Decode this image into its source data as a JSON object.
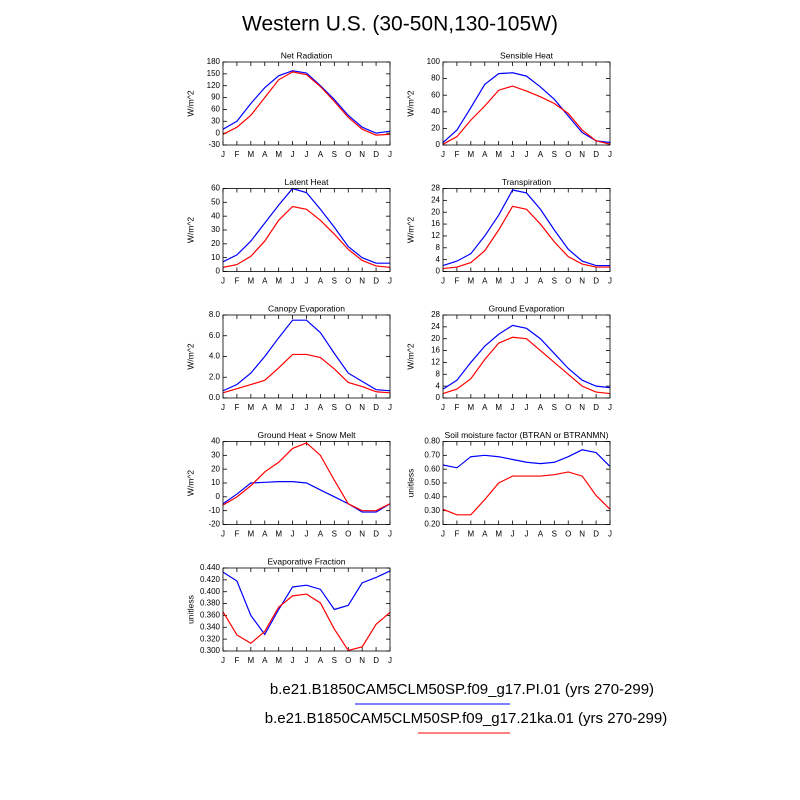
{
  "title": "Western U.S. (30-50N,130-105W)",
  "legend": [
    {
      "name": "b.e21.B1850CAM5CLM50SP.f09_g17.PI.01 (yrs 270-299)",
      "color": "#0000ff"
    },
    {
      "name": "b.e21.B1850CAM5CLM50SP.f09_g17.21ka.01 (yrs 270-299)",
      "color": "#ff0000"
    }
  ],
  "chart_data": [
    {
      "type": "line",
      "title": "Net Radiation",
      "ylabel": "W/m^2",
      "categories": [
        "J",
        "F",
        "M",
        "A",
        "M",
        "J",
        "J",
        "A",
        "S",
        "O",
        "N",
        "D",
        "J"
      ],
      "series": [
        {
          "color": "#0000ff",
          "values": [
            10,
            30,
            75,
            115,
            145,
            158,
            152,
            120,
            85,
            45,
            15,
            0,
            5
          ]
        },
        {
          "color": "#ff0000",
          "values": [
            -3,
            15,
            45,
            90,
            135,
            155,
            148,
            118,
            80,
            40,
            10,
            -5,
            -3
          ]
        }
      ],
      "ylim": [
        -30,
        180
      ],
      "yticks": [
        -30,
        0,
        30,
        60,
        90,
        120,
        150,
        180
      ]
    },
    {
      "type": "line",
      "title": "Sensible Heat",
      "ylabel": "W/m^2",
      "categories": [
        "J",
        "F",
        "M",
        "A",
        "M",
        "J",
        "J",
        "A",
        "S",
        "O",
        "N",
        "D",
        "J"
      ],
      "series": [
        {
          "color": "#0000ff",
          "values": [
            3,
            18,
            45,
            73,
            86,
            87,
            83,
            70,
            55,
            35,
            15,
            5,
            3
          ]
        },
        {
          "color": "#ff0000",
          "values": [
            1,
            10,
            30,
            47,
            66,
            71,
            65,
            58,
            50,
            38,
            18,
            5,
            1
          ]
        }
      ],
      "ylim": [
        0,
        100
      ],
      "yticks": [
        0,
        20,
        40,
        60,
        80,
        100
      ]
    },
    {
      "type": "line",
      "title": "Latent Heat",
      "ylabel": "W/m^2",
      "categories": [
        "J",
        "F",
        "M",
        "A",
        "M",
        "J",
        "J",
        "A",
        "S",
        "O",
        "N",
        "D",
        "J"
      ],
      "series": [
        {
          "color": "#0000ff",
          "values": [
            7,
            12,
            22,
            35,
            48,
            60,
            57,
            45,
            32,
            18,
            10,
            6,
            6
          ]
        },
        {
          "color": "#ff0000",
          "values": [
            3,
            5,
            11,
            22,
            37,
            47,
            45,
            37,
            27,
            16,
            8,
            4,
            3
          ]
        }
      ],
      "ylim": [
        0,
        60
      ],
      "yticks": [
        0,
        10,
        20,
        30,
        40,
        50,
        60
      ]
    },
    {
      "type": "line",
      "title": "Transpiration",
      "ylabel": "W/m^2",
      "categories": [
        "J",
        "F",
        "M",
        "A",
        "M",
        "J",
        "J",
        "A",
        "S",
        "O",
        "N",
        "D",
        "J"
      ],
      "series": [
        {
          "color": "#0000ff",
          "values": [
            2,
            3.5,
            6,
            12,
            19,
            27.5,
            26.5,
            21,
            14,
            7.5,
            3.5,
            2,
            2
          ]
        },
        {
          "color": "#ff0000",
          "values": [
            1,
            1.5,
            3,
            7,
            14,
            22,
            21,
            16,
            10,
            5,
            2.5,
            1.5,
            1.5
          ]
        }
      ],
      "ylim": [
        0,
        28
      ],
      "yticks": [
        0,
        4,
        8,
        12,
        16,
        20,
        24,
        28
      ]
    },
    {
      "type": "line",
      "title": "Canopy Evaporation",
      "ylabel": "W/m^2",
      "categories": [
        "J",
        "F",
        "M",
        "A",
        "M",
        "J",
        "J",
        "A",
        "S",
        "O",
        "N",
        "D",
        "J"
      ],
      "series": [
        {
          "color": "#0000ff",
          "values": [
            0.7,
            1.3,
            2.4,
            4.0,
            5.8,
            7.5,
            7.5,
            6.3,
            4.3,
            2.4,
            1.6,
            0.8,
            0.7
          ]
        },
        {
          "color": "#ff0000",
          "values": [
            0.5,
            0.9,
            1.3,
            1.7,
            2.9,
            4.2,
            4.2,
            3.9,
            2.8,
            1.5,
            1.1,
            0.6,
            0.5
          ]
        }
      ],
      "ylim": [
        0,
        8
      ],
      "yticks": [
        {
          "value": 0,
          "label": "0.0"
        },
        {
          "value": 2,
          "label": "2.0"
        },
        {
          "value": 4,
          "label": "4.0"
        },
        {
          "value": 6,
          "label": "6.0"
        },
        {
          "value": 8,
          "label": "8.0"
        }
      ]
    },
    {
      "type": "line",
      "title": "Ground Evaporation",
      "ylabel": "W/m^2",
      "categories": [
        "J",
        "F",
        "M",
        "A",
        "M",
        "J",
        "J",
        "A",
        "S",
        "O",
        "N",
        "D",
        "J"
      ],
      "series": [
        {
          "color": "#0000ff",
          "values": [
            3,
            6,
            12,
            17.5,
            21.5,
            24.5,
            23.5,
            20,
            15,
            10,
            6,
            4,
            3.5
          ]
        },
        {
          "color": "#ff0000",
          "values": [
            1.5,
            3,
            6.5,
            13,
            18.5,
            20.5,
            20,
            16,
            12,
            8,
            4,
            2,
            1.5
          ]
        }
      ],
      "ylim": [
        0,
        28
      ],
      "yticks": [
        0,
        4,
        8,
        12,
        16,
        20,
        24,
        28
      ]
    },
    {
      "type": "line",
      "title": "Ground Heat + Snow Melt",
      "ylabel": "W/m^2",
      "categories": [
        "J",
        "F",
        "M",
        "A",
        "M",
        "J",
        "J",
        "A",
        "S",
        "O",
        "N",
        "D",
        "J"
      ],
      "series": [
        {
          "color": "#0000ff",
          "values": [
            -5,
            2,
            10,
            10.5,
            11,
            11,
            10,
            5,
            0,
            -5,
            -11,
            -11,
            -5
          ]
        },
        {
          "color": "#ff0000",
          "values": [
            -6,
            0,
            8,
            18,
            25,
            35,
            39,
            30,
            12,
            -5,
            -10,
            -10,
            -5
          ]
        }
      ],
      "ylim": [
        -20,
        40
      ],
      "yticks": [
        -20,
        -10,
        0,
        10,
        20,
        30,
        40
      ]
    },
    {
      "type": "line",
      "title": "Soil moisture factor (BTRAN or BTRANMN)",
      "ylabel": "unitless",
      "categories": [
        "J",
        "F",
        "M",
        "A",
        "M",
        "J",
        "J",
        "A",
        "S",
        "O",
        "N",
        "D",
        "J"
      ],
      "series": [
        {
          "color": "#0000ff",
          "values": [
            0.63,
            0.61,
            0.69,
            0.7,
            0.69,
            0.67,
            0.65,
            0.64,
            0.65,
            0.69,
            0.74,
            0.72,
            0.62
          ]
        },
        {
          "color": "#ff0000",
          "values": [
            0.31,
            0.27,
            0.27,
            0.38,
            0.5,
            0.55,
            0.55,
            0.55,
            0.56,
            0.58,
            0.55,
            0.41,
            0.31
          ]
        }
      ],
      "ylim": [
        0.2,
        0.8
      ],
      "yticks": [
        {
          "value": 0.2,
          "label": "0.20"
        },
        {
          "value": 0.3,
          "label": "0.30"
        },
        {
          "value": 0.4,
          "label": "0.40"
        },
        {
          "value": 0.5,
          "label": "0.50"
        },
        {
          "value": 0.6,
          "label": "0.60"
        },
        {
          "value": 0.7,
          "label": "0.70"
        },
        {
          "value": 0.8,
          "label": "0.80"
        }
      ]
    },
    {
      "type": "line",
      "title": "Evaporative Fraction",
      "ylabel": "unitless",
      "categories": [
        "J",
        "F",
        "M",
        "A",
        "M",
        "J",
        "J",
        "A",
        "S",
        "O",
        "N",
        "D",
        "J"
      ],
      "series": [
        {
          "color": "#0000ff",
          "values": [
            0.433,
            0.418,
            0.36,
            0.328,
            0.37,
            0.408,
            0.411,
            0.404,
            0.37,
            0.377,
            0.415,
            0.424,
            0.435
          ]
        },
        {
          "color": "#ff0000",
          "values": [
            0.366,
            0.327,
            0.313,
            0.333,
            0.374,
            0.393,
            0.396,
            0.381,
            0.337,
            0.301,
            0.307,
            0.345,
            0.365
          ]
        }
      ],
      "ylim": [
        0.3,
        0.44
      ],
      "yticks": [
        {
          "value": 0.3,
          "label": "0.300"
        },
        {
          "value": 0.32,
          "label": "0.320"
        },
        {
          "value": 0.34,
          "label": "0.340"
        },
        {
          "value": 0.36,
          "label": "0.360"
        },
        {
          "value": 0.38,
          "label": "0.380"
        },
        {
          "value": 0.4,
          "label": "0.400"
        },
        {
          "value": 0.42,
          "label": "0.420"
        },
        {
          "value": 0.44,
          "label": "0.440"
        }
      ]
    }
  ]
}
